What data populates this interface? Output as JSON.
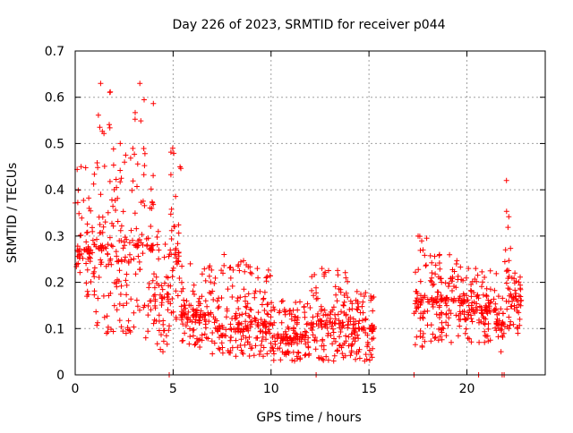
{
  "chart_data": {
    "type": "scatter",
    "title": "Day 226 of 2023, SRMTID for receiver p044",
    "xlabel": "GPS time / hours",
    "ylabel": "SRMTID / TECUs",
    "xlim": [
      0,
      24
    ],
    "ylim": [
      0,
      0.7
    ],
    "xticks": [
      0,
      5,
      10,
      15,
      20
    ],
    "yticks": [
      0,
      0.1,
      0.2,
      0.3,
      0.4,
      0.5,
      0.6,
      0.7
    ],
    "grid": true,
    "marker": "+",
    "series_color": "#ff0000",
    "segments": [
      {
        "x_start": 0.0,
        "x_end": 1.0,
        "y_min": 0.17,
        "y_max": 0.45,
        "mean": 0.27
      },
      {
        "x_start": 1.0,
        "x_end": 2.0,
        "y_min": 0.09,
        "y_max": 0.63,
        "mean": 0.28
      },
      {
        "x_start": 2.0,
        "x_end": 3.0,
        "y_min": 0.09,
        "y_max": 0.5,
        "mean": 0.25
      },
      {
        "x_start": 3.0,
        "x_end": 4.0,
        "y_min": 0.08,
        "y_max": 0.63,
        "mean": 0.28
      },
      {
        "x_start": 4.0,
        "x_end": 4.8,
        "y_min": 0.05,
        "y_max": 0.31,
        "mean": 0.17
      },
      {
        "x_start": 4.8,
        "x_end": 5.4,
        "y_min": 0.12,
        "y_max": 0.49,
        "mean": 0.26
      },
      {
        "x_start": 5.4,
        "x_end": 7.0,
        "y_min": 0.06,
        "y_max": 0.24,
        "mean": 0.13
      },
      {
        "x_start": 7.0,
        "x_end": 9.0,
        "y_min": 0.04,
        "y_max": 0.26,
        "mean": 0.1
      },
      {
        "x_start": 9.0,
        "x_end": 10.0,
        "y_min": 0.04,
        "y_max": 0.23,
        "mean": 0.11
      },
      {
        "x_start": 10.0,
        "x_end": 12.0,
        "y_min": 0.03,
        "y_max": 0.16,
        "mean": 0.08
      },
      {
        "x_start": 12.0,
        "x_end": 14.0,
        "y_min": 0.03,
        "y_max": 0.23,
        "mean": 0.11
      },
      {
        "x_start": 14.0,
        "x_end": 15.3,
        "y_min": 0.03,
        "y_max": 0.18,
        "mean": 0.1
      },
      {
        "x_start": 17.3,
        "x_end": 18.0,
        "y_min": 0.06,
        "y_max": 0.3,
        "mean": 0.16
      },
      {
        "x_start": 18.0,
        "x_end": 20.0,
        "y_min": 0.07,
        "y_max": 0.26,
        "mean": 0.16
      },
      {
        "x_start": 20.0,
        "x_end": 21.5,
        "y_min": 0.07,
        "y_max": 0.23,
        "mean": 0.14
      },
      {
        "x_start": 21.5,
        "x_end": 21.9,
        "y_min": 0.05,
        "y_max": 0.17,
        "mean": 0.11
      },
      {
        "x_start": 21.9,
        "x_end": 22.3,
        "y_min": 0.1,
        "y_max": 0.42,
        "mean": 0.22
      },
      {
        "x_start": 22.3,
        "x_end": 22.8,
        "y_min": 0.09,
        "y_max": 0.22,
        "mean": 0.16
      }
    ],
    "zero_points_x": [
      4.8,
      12.3,
      17.3,
      20.6,
      21.8,
      21.9
    ]
  }
}
